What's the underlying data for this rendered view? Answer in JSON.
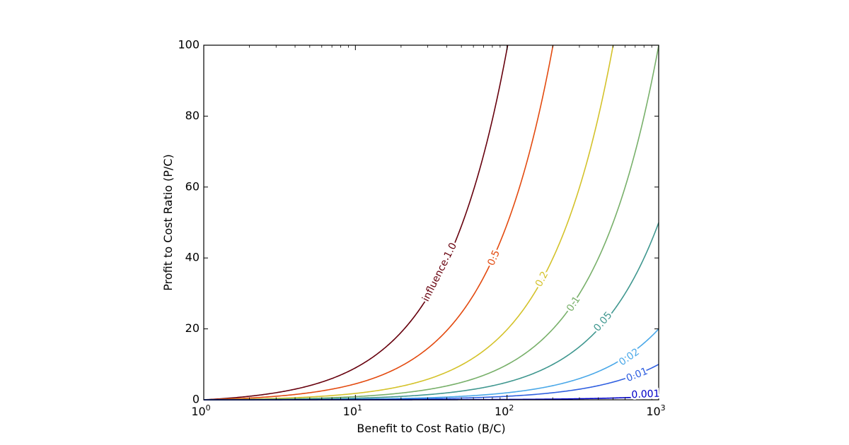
{
  "chart_data": {
    "type": "line",
    "title": "",
    "xlabel": "Benefit to Cost Ratio (B/C)",
    "ylabel": "Profit to Cost Ratio (P/C)",
    "xscale": "log",
    "xlim": [
      1,
      1000
    ],
    "ylim": [
      0,
      100
    ],
    "grid": false,
    "legend": "none",
    "x_ticks": [
      {
        "value": 1,
        "base": "10",
        "exp": "0"
      },
      {
        "value": 10,
        "base": "10",
        "exp": "1"
      },
      {
        "value": 100,
        "base": "10",
        "exp": "2"
      },
      {
        "value": 1000,
        "base": "10",
        "exp": "3"
      }
    ],
    "y_ticks": [
      {
        "value": 0,
        "label": "0"
      },
      {
        "value": 20,
        "label": "20"
      },
      {
        "value": 40,
        "label": "40"
      },
      {
        "value": 60,
        "label": "60"
      },
      {
        "value": 80,
        "label": "80"
      },
      {
        "value": 100,
        "label": "100"
      }
    ],
    "series": [
      {
        "label": "influence 1.0",
        "level": 1.0,
        "color": "#67000d",
        "label_x": 36,
        "label_y": 36
      },
      {
        "label": "0.5",
        "level": 0.5,
        "color": "#e34a0f",
        "label_x": 82,
        "label_y": 40
      },
      {
        "label": "0.2",
        "level": 0.2,
        "color": "#d4c22a",
        "label_x": 170,
        "label_y": 34
      },
      {
        "label": "0.1",
        "level": 0.1,
        "color": "#78b06a",
        "label_x": 275,
        "label_y": 27
      },
      {
        "label": "0.05",
        "level": 0.05,
        "color": "#3f978f",
        "label_x": 430,
        "label_y": 22
      },
      {
        "label": "0.02",
        "level": 0.02,
        "color": "#4aa8e8",
        "label_x": 640,
        "label_y": 12
      },
      {
        "label": "0.01",
        "level": 0.01,
        "color": "#2f5fe0",
        "label_x": 720,
        "label_y": 7
      },
      {
        "label": "0.001",
        "level": 0.001,
        "color": "#0000c8",
        "label_x": 820,
        "label_y": 1.5
      }
    ]
  }
}
